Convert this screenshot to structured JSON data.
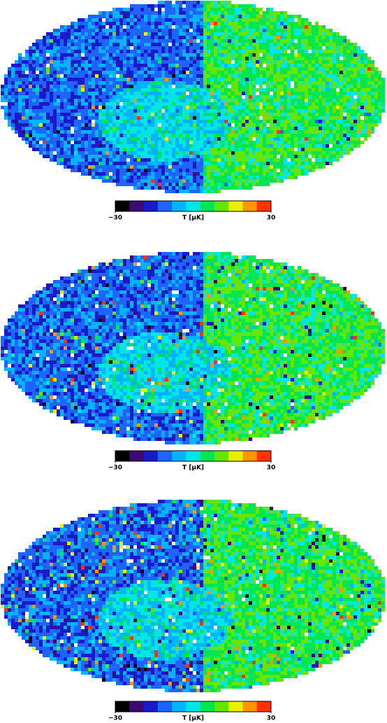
{
  "chart_data": [
    {
      "type": "skymap",
      "colorbar_label": "T [μK]",
      "clim": [
        -30,
        30
      ],
      "cticks": [
        {
          "value": -30,
          "label": "−30"
        },
        30
      ],
      "colors": [
        "#000000",
        "#3c0a70",
        "#1a1ac8",
        "#1e64ff",
        "#00b4ff",
        "#00e6e6",
        "#00e650",
        "#64e600",
        "#e6f000",
        "#ff9600",
        "#ff3200"
      ]
    },
    {
      "type": "skymap",
      "colorbar_label": "T [μK]",
      "clim": [
        -30,
        30
      ],
      "cticks": [
        {
          "value": -30,
          "label": "−30"
        },
        30
      ],
      "colors": [
        "#000000",
        "#3c0a70",
        "#1a1ac8",
        "#1e64ff",
        "#00b4ff",
        "#00e6e6",
        "#00e650",
        "#64e600",
        "#e6f000",
        "#ff9600",
        "#ff3200"
      ]
    },
    {
      "type": "skymap",
      "colorbar_label": "T [μK]",
      "clim": [
        -30,
        30
      ],
      "cticks": [
        {
          "value": -30,
          "label": "−30"
        },
        30
      ],
      "colors": [
        "#000000",
        "#3c0a70",
        "#1a1ac8",
        "#1e64ff",
        "#00b4ff",
        "#00e6e6",
        "#00e650",
        "#64e600",
        "#e6f000",
        "#ff9600",
        "#ff3200"
      ]
    }
  ]
}
